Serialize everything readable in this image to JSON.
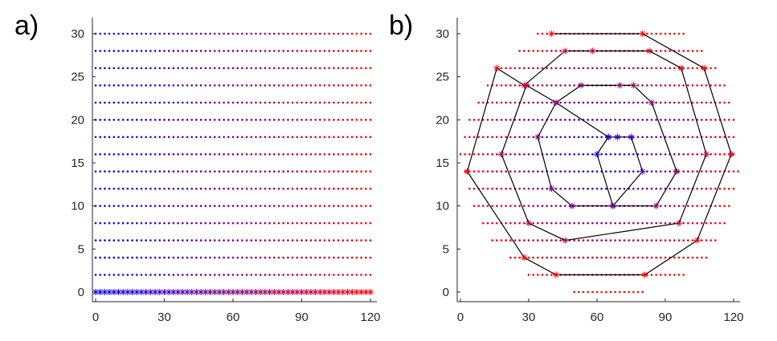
{
  "colors": {
    "start": "#0000ff",
    "end": "#ff0000",
    "path": "#000000",
    "axis": "#262626"
  },
  "chart_data": [
    {
      "type": "scatter",
      "panel_label": "a)",
      "title": "",
      "xlabel": "",
      "ylabel": "",
      "xlim": [
        0,
        120
      ],
      "ylim": [
        -1,
        31
      ],
      "xticks": [
        0,
        30,
        60,
        90,
        120
      ],
      "yticks": [
        0,
        5,
        10,
        15,
        20,
        25,
        30
      ],
      "grid": false,
      "legend": "none",
      "rows": [
        {
          "y": 0,
          "x_min": 0,
          "x_max": 120,
          "marker": "*"
        },
        {
          "y": 2,
          "x_min": 0,
          "x_max": 120,
          "marker": "."
        },
        {
          "y": 4,
          "x_min": 0,
          "x_max": 120,
          "marker": "."
        },
        {
          "y": 6,
          "x_min": 0,
          "x_max": 120,
          "marker": "."
        },
        {
          "y": 8,
          "x_min": 0,
          "x_max": 120,
          "marker": "."
        },
        {
          "y": 10,
          "x_min": 0,
          "x_max": 120,
          "marker": "."
        },
        {
          "y": 12,
          "x_min": 0,
          "x_max": 120,
          "marker": "."
        },
        {
          "y": 14,
          "x_min": 0,
          "x_max": 120,
          "marker": "."
        },
        {
          "y": 16,
          "x_min": 0,
          "x_max": 120,
          "marker": "."
        },
        {
          "y": 18,
          "x_min": 0,
          "x_max": 120,
          "marker": "."
        },
        {
          "y": 20,
          "x_min": 0,
          "x_max": 120,
          "marker": "."
        },
        {
          "y": 22,
          "x_min": 0,
          "x_max": 120,
          "marker": "."
        },
        {
          "y": 24,
          "x_min": 0,
          "x_max": 120,
          "marker": "."
        },
        {
          "y": 26,
          "x_min": 0,
          "x_max": 120,
          "marker": "."
        },
        {
          "y": 28,
          "x_min": 0,
          "x_max": 120,
          "marker": "."
        },
        {
          "y": 30,
          "x_min": 0,
          "x_max": 120,
          "marker": "."
        }
      ],
      "color_gradient": "blue (left) to red (right)"
    },
    {
      "type": "scatter",
      "panel_label": "b)",
      "title": "",
      "xlabel": "",
      "ylabel": "",
      "xlim": [
        -2,
        122
      ],
      "ylim": [
        -1,
        31
      ],
      "xticks": [
        0,
        30,
        60,
        90,
        120
      ],
      "yticks": [
        0,
        5,
        10,
        15,
        20,
        25,
        30
      ],
      "grid": false,
      "legend": "none",
      "color_gradient": "blue (center) to red (edge)",
      "rows": [
        {
          "y": 0,
          "x_min": 50,
          "x_max": 80
        },
        {
          "y": 2,
          "x_min": 30,
          "x_max": 98
        },
        {
          "y": 4,
          "x_min": 22,
          "x_max": 108
        },
        {
          "y": 6,
          "x_min": 14,
          "x_max": 112
        },
        {
          "y": 8,
          "x_min": 10,
          "x_max": 116
        },
        {
          "y": 10,
          "x_min": 6,
          "x_max": 118
        },
        {
          "y": 12,
          "x_min": 4,
          "x_max": 120
        },
        {
          "y": 14,
          "x_min": 2,
          "x_max": 122
        },
        {
          "y": 16,
          "x_min": 0,
          "x_max": 120
        },
        {
          "y": 18,
          "x_min": 2,
          "x_max": 120
        },
        {
          "y": 20,
          "x_min": 4,
          "x_max": 120
        },
        {
          "y": 22,
          "x_min": 8,
          "x_max": 118
        },
        {
          "y": 24,
          "x_min": 12,
          "x_max": 116
        },
        {
          "y": 26,
          "x_min": 18,
          "x_max": 112
        },
        {
          "y": 28,
          "x_min": 26,
          "x_max": 106
        },
        {
          "y": 30,
          "x_min": 34,
          "x_max": 98
        }
      ],
      "path": [
        [
          41,
          30
        ],
        [
          98,
          30
        ],
        [
          107,
          26
        ],
        [
          120,
          16
        ],
        [
          104,
          6
        ],
        [
          82,
          2
        ],
        [
          41,
          2
        ],
        [
          27,
          4
        ],
        [
          3,
          14
        ],
        [
          17,
          26
        ],
        [
          40,
          30
        ],
        [
          56,
          28
        ],
        [
          71,
          28
        ],
        [
          95,
          26
        ],
        [
          105,
          14
        ],
        [
          95,
          8
        ],
        [
          42,
          6
        ],
        [
          28,
          8
        ],
        [
          17,
          16
        ],
        [
          28,
          24
        ],
        [
          56,
          28
        ],
        [
          71,
          28
        ],
        [
          80,
          24
        ],
        [
          93,
          22
        ],
        [
          104,
          14
        ],
        [
          95,
          8
        ],
        [
          42,
          6
        ],
        [
          28,
          8
        ],
        [
          17,
          16
        ],
        [
          28,
          24
        ],
        [
          56,
          28
        ]
      ],
      "spiral": [
        [
          40,
          30
        ],
        [
          80,
          30
        ],
        [
          107,
          26
        ],
        [
          119,
          16
        ],
        [
          104,
          6
        ],
        [
          81,
          2
        ],
        [
          42,
          2
        ],
        [
          28,
          4
        ],
        [
          3,
          14
        ],
        [
          16,
          26
        ],
        [
          28,
          24
        ],
        [
          46,
          28
        ],
        [
          58,
          28
        ],
        [
          83,
          28
        ],
        [
          97,
          26
        ],
        [
          108,
          16
        ],
        [
          96,
          8
        ],
        [
          46,
          6
        ],
        [
          30,
          8
        ],
        [
          18,
          16
        ],
        [
          29,
          24
        ],
        [
          42,
          22
        ],
        [
          53,
          24
        ],
        [
          70,
          24
        ],
        [
          76,
          24
        ],
        [
          84,
          22
        ],
        [
          95,
          14
        ],
        [
          86,
          10
        ],
        [
          67,
          10
        ],
        [
          49,
          10
        ],
        [
          40,
          12
        ],
        [
          34,
          18
        ],
        [
          42,
          22
        ],
        [
          65,
          18
        ],
        [
          69,
          18
        ],
        [
          75,
          18
        ],
        [
          80,
          14
        ],
        [
          67,
          10
        ],
        [
          60,
          16
        ],
        [
          65,
          18
        ]
      ]
    }
  ]
}
